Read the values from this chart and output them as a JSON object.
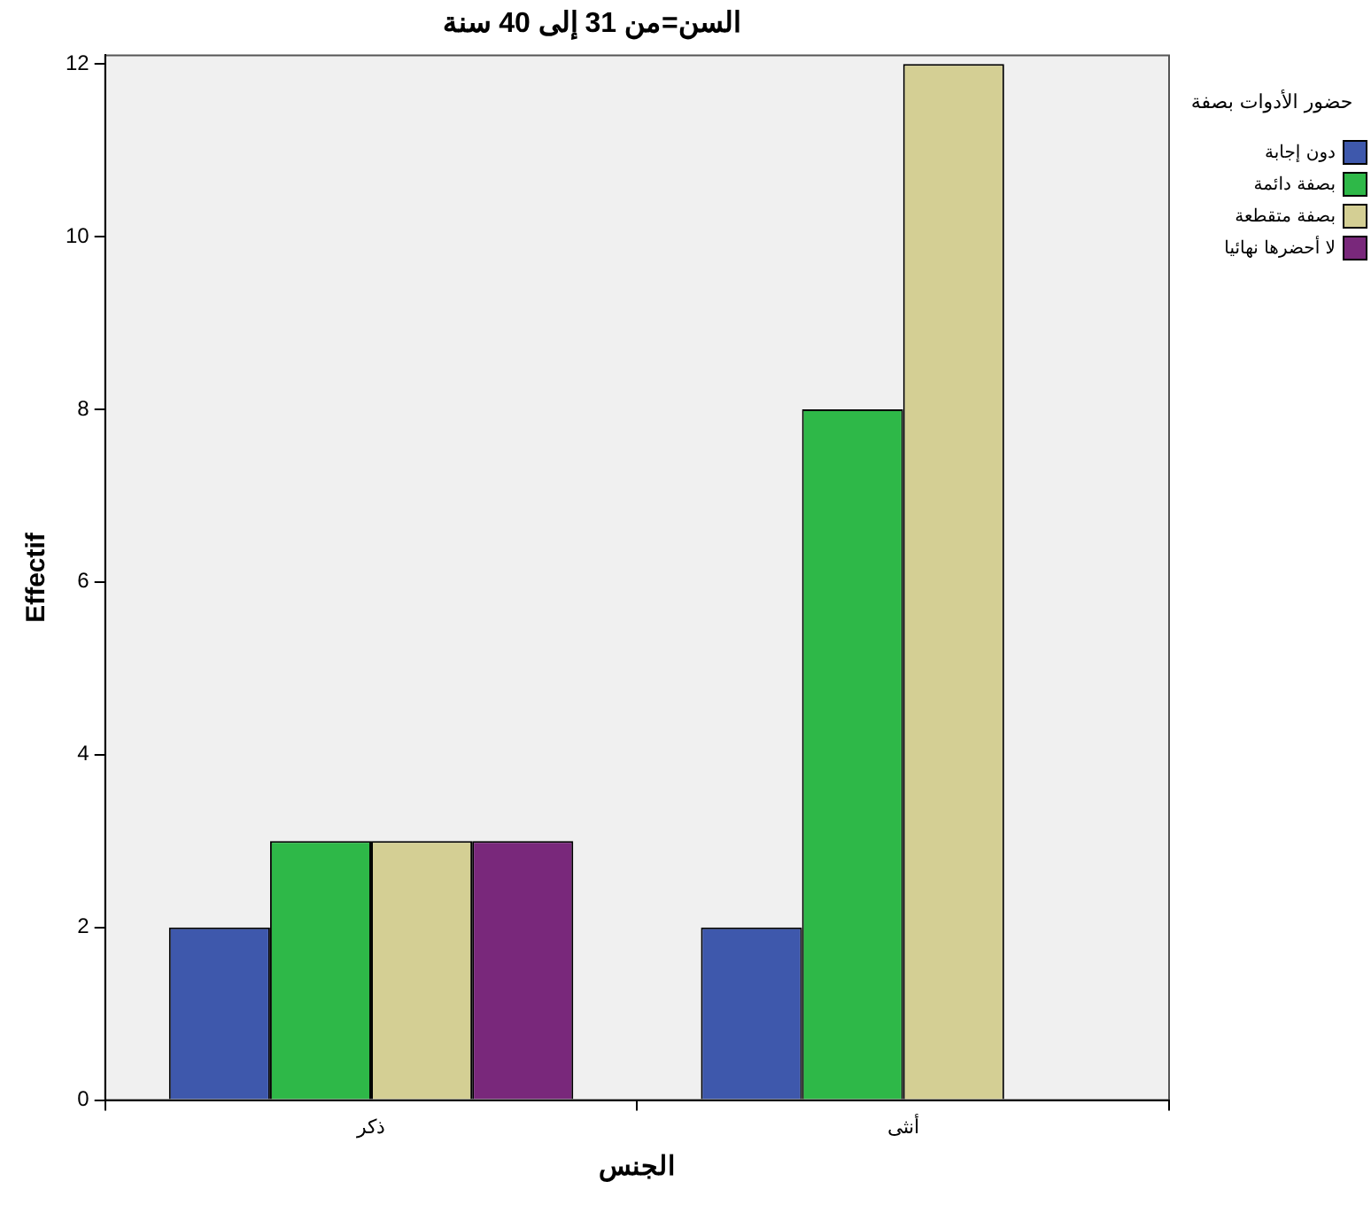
{
  "chart_data": {
    "type": "bar",
    "title": "السن=من 31 إلى 40 سنة",
    "xlabel": "الجنس",
    "ylabel": "Effectif",
    "legend_title": "حضور الأدوات بصفة",
    "categories": [
      "ذكر",
      "أنثى"
    ],
    "series": [
      {
        "name": "دون إجابة",
        "color": "#3e58ac",
        "values": [
          2,
          2
        ]
      },
      {
        "name": "بصفة دائمة",
        "color": "#2eb848",
        "values": [
          3,
          8
        ]
      },
      {
        "name": "بصفة متقطعة",
        "color": "#d4cf94",
        "values": [
          3,
          12
        ]
      },
      {
        "name": "لا أحضرها نهائيا",
        "color": "#79287b",
        "values": [
          3,
          null
        ]
      }
    ],
    "ylim": [
      0,
      12.1
    ],
    "yticks": [
      0,
      2,
      4,
      6,
      8,
      10,
      12
    ],
    "grid": false,
    "legend": "top right"
  }
}
